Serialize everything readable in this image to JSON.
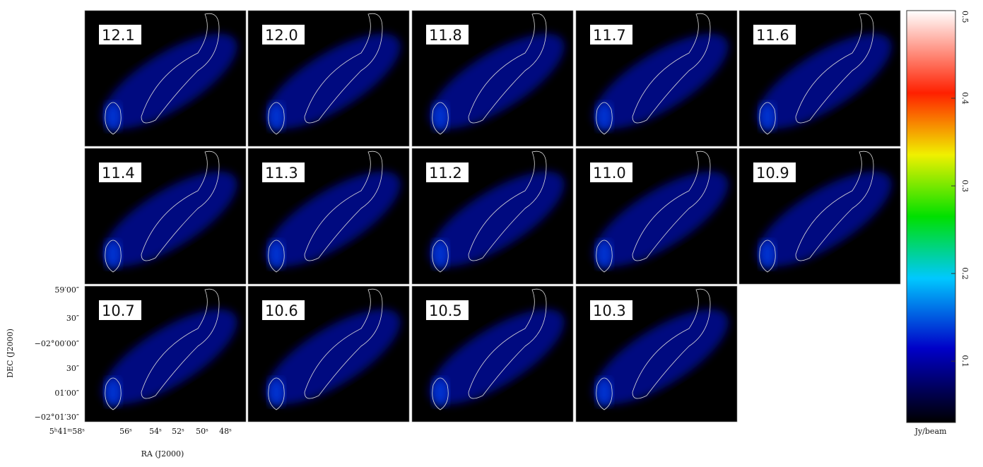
{
  "panels": [
    "12.1",
    "12.0",
    "11.8",
    "11.7",
    "11.6",
    "11.4",
    "11.3",
    "11.2",
    "11.0",
    "10.9",
    "10.7",
    "10.6",
    "10.5",
    "10.3"
  ],
  "axes": {
    "x_label": "RA (J2000)",
    "y_label": "DEC (J2000)",
    "x_ticks": [
      "5ʰ41ᵐ58ˢ",
      "56ˢ",
      "54ˢ",
      "52ˢ",
      "50ˢ",
      "48ˢ"
    ],
    "y_ticks": [
      "59′00″",
      "30″",
      "−02°00′00″",
      "30″",
      "01′00″",
      "−02°01′30″"
    ]
  },
  "colorbar": {
    "label": "Jy/beam",
    "lim": [
      0.03,
      0.5
    ],
    "ticks": [
      0.1,
      0.2,
      0.3,
      0.4,
      0.5
    ]
  }
}
